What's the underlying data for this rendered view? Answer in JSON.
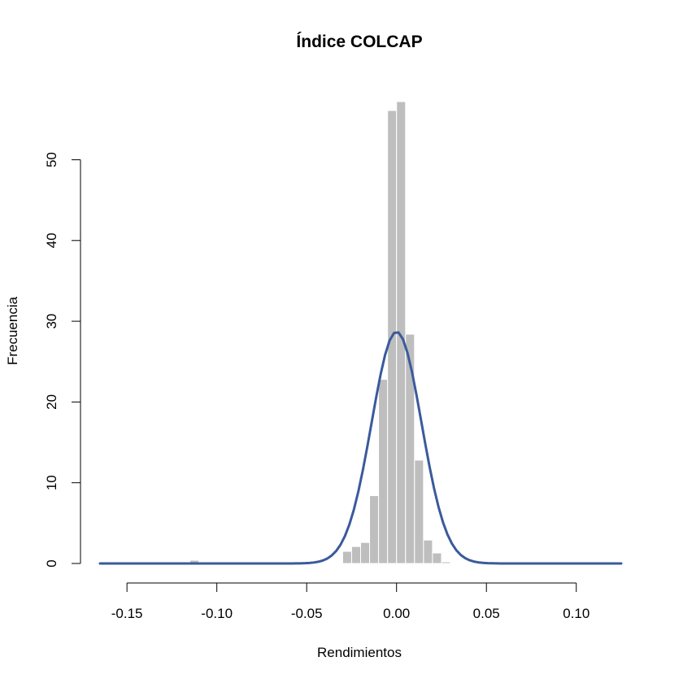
{
  "chart_data": {
    "type": "bar",
    "title": "Índice COLCAP",
    "xlabel": "Rendimientos",
    "ylabel": "Frecuencia",
    "xlim": [
      -0.165,
      0.125
    ],
    "ylim": [
      0,
      57.5
    ],
    "x_ticks": [
      "-0.15",
      "-0.10",
      "-0.05",
      "0.00",
      "0.05",
      "0.10"
    ],
    "x_tick_values": [
      -0.15,
      -0.1,
      -0.05,
      0.0,
      0.05,
      0.1
    ],
    "y_ticks": [
      "0",
      "10",
      "20",
      "30",
      "40",
      "50"
    ],
    "y_tick_values": [
      0,
      10,
      20,
      30,
      40,
      50
    ],
    "bin_width": 0.005,
    "bins": [
      {
        "start": -0.165,
        "value": 0.2
      },
      {
        "start": -0.115,
        "value": 0.4
      },
      {
        "start": -0.1,
        "value": 0.1
      },
      {
        "start": -0.06,
        "value": 0.1
      },
      {
        "start": -0.03,
        "value": 1.5
      },
      {
        "start": -0.025,
        "value": 2.1
      },
      {
        "start": -0.02,
        "value": 2.6
      },
      {
        "start": -0.015,
        "value": 8.4
      },
      {
        "start": -0.01,
        "value": 22.8
      },
      {
        "start": -0.005,
        "value": 56.1
      },
      {
        "start": 0.0,
        "value": 57.2
      },
      {
        "start": 0.005,
        "value": 28.4
      },
      {
        "start": 0.01,
        "value": 12.8
      },
      {
        "start": 0.015,
        "value": 2.9
      },
      {
        "start": 0.02,
        "value": 1.3
      },
      {
        "start": 0.025,
        "value": 0.2
      },
      {
        "start": 0.105,
        "value": 0.1
      }
    ],
    "density_curve": {
      "mean": 0.0,
      "sd": 0.0139,
      "x_range": [
        -0.165,
        0.125
      ],
      "samples": 117
    },
    "colors": {
      "bars": "#bebebe",
      "curve": "#3a5a9b"
    }
  }
}
